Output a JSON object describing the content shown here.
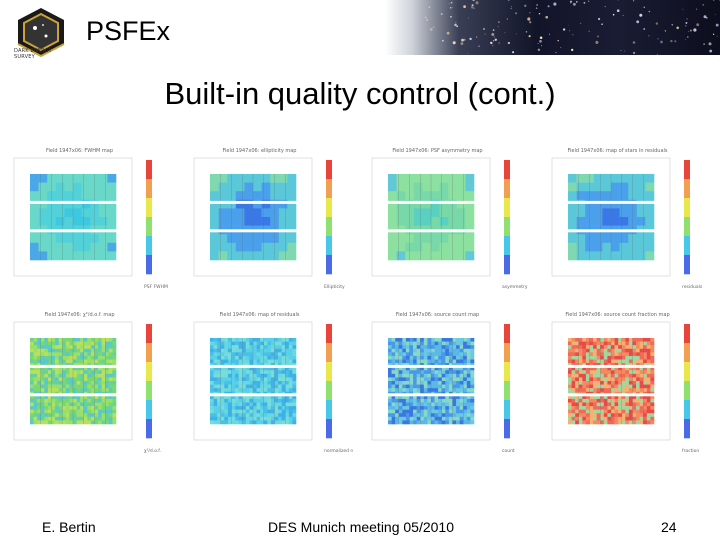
{
  "header": {
    "logo_icon": "des-hexagon-logo",
    "logo_text_line1": "DARK ENERGY",
    "logo_text_line2": "SURVEY",
    "app_title": "PSFEx",
    "banner_icon": "starfield-banner"
  },
  "slide": {
    "title": "Built-in quality control (cont.)"
  },
  "panels": [
    {
      "title": "Field 1947x06: FWHM map",
      "colorbar_label": "PSF FWHM",
      "scheme": "smooth-cyan"
    },
    {
      "title": "Field 1947x06: ellipticity map",
      "colorbar_label": "Ellipticity",
      "scheme": "smooth-ring"
    },
    {
      "title": "Field 1947x06: PSF asymmetry map",
      "colorbar_label": "asymmetry",
      "scheme": "smooth-green"
    },
    {
      "title": "Field 1947x06: map of stars in residuals",
      "colorbar_label": "residuals",
      "scheme": "smooth-ring"
    },
    {
      "title": "Field 1947x06: χ²/d.o.f. map",
      "colorbar_label": "χ²/d.o.f.",
      "scheme": "noisy-green"
    },
    {
      "title": "Field 1947x06: map of residuals",
      "colorbar_label": "normalized residuals",
      "scheme": "noisy-cyan"
    },
    {
      "title": "Field 1947x06: source count map",
      "colorbar_label": "count",
      "scheme": "noisy-blue"
    },
    {
      "title": "Field 1947x06: source count fraction map",
      "colorbar_label": "fraction",
      "scheme": "noisy-red"
    }
  ],
  "footer": {
    "author": "E. Bertin",
    "meeting": "DES Munich meeting 05/2010",
    "page_number": "24"
  },
  "colors": {
    "colorbar_top": "#e8443a",
    "colorbar_mid": "#e8e84a",
    "colorbar_low": "#48c8e8",
    "colorbar_bottom": "#4a6ae8"
  }
}
